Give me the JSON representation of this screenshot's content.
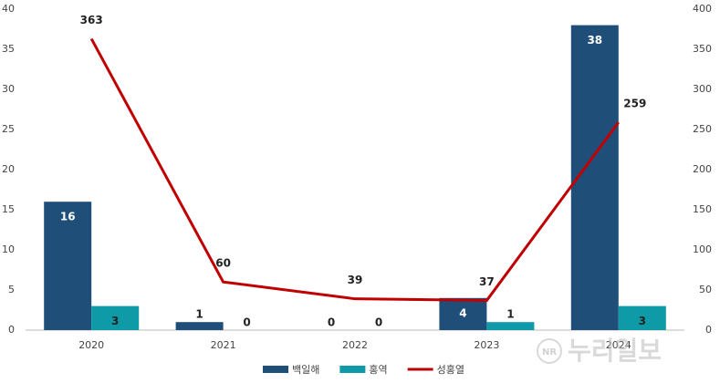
{
  "chart_data": {
    "type": "bar_line",
    "categories": [
      "2020",
      "2021",
      "2022",
      "2023",
      "2024"
    ],
    "series": [
      {
        "name": "백일해",
        "color": "#1f4e79",
        "type": "bar",
        "values": [
          16,
          1,
          0,
          4,
          38
        ]
      },
      {
        "name": "홍역",
        "color": "#0e9aa7",
        "type": "bar",
        "values": [
          3,
          0,
          0,
          1,
          3
        ]
      },
      {
        "name": "성홍열",
        "color": "#c00000",
        "type": "line",
        "axis": "y2",
        "values": [
          363,
          60,
          39,
          37,
          259
        ]
      }
    ],
    "ylim": [
      0,
      40
    ],
    "yticks": [
      0,
      5,
      10,
      15,
      20,
      25,
      30,
      35,
      40
    ],
    "y2lim": [
      0,
      400
    ],
    "y2ticks": [
      0,
      50,
      100,
      150,
      200,
      250,
      300,
      350,
      400
    ],
    "grid": false,
    "legend": "bottom",
    "watermark": {
      "logo": "NR",
      "text": "누리일보"
    }
  }
}
